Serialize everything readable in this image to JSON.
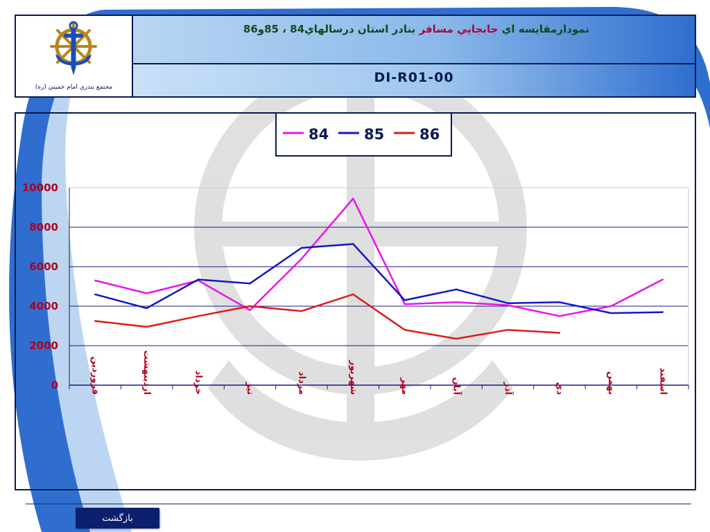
{
  "header": {
    "title_part1": "نمودارمقايسه اي ",
    "title_part2": "جابجايي مسافر",
    "title_part3": " بنادر استان درسالهاي84 ، 85و86",
    "code": "DI-R01-00",
    "logo_caption": "مجتمع بندري امام خميني (ره)"
  },
  "footer": {
    "back_label": "بازگشت"
  },
  "colors": {
    "s84": "#e815e8",
    "s85": "#1515c8",
    "s86": "#dd1a1a",
    "grid": "#1a1a8a",
    "axis_text": "#b00020"
  },
  "chart_data": {
    "type": "line",
    "title": "",
    "xlabel": "",
    "ylabel": "",
    "ylim": [
      0,
      10000
    ],
    "yticks": [
      {
        "value": 0,
        "label": "0"
      },
      {
        "value": 2000,
        "label": "2000"
      },
      {
        "value": 4000,
        "label": "4000"
      },
      {
        "value": 6000,
        "label": "6000"
      },
      {
        "value": 8000,
        "label": "8000"
      },
      {
        "value": 10000,
        "label": "10000"
      }
    ],
    "grid": true,
    "legend_position": "top-center",
    "categories": [
      "فروردين",
      "ارديبهشت",
      "خرداد",
      "تير",
      "مرداد",
      "شهريور",
      "مهر",
      "آبان",
      "آذر",
      "دي",
      "بهمن",
      "اسفند"
    ],
    "series": [
      {
        "name": "84",
        "color": "#e815e8",
        "values": [
          5300,
          4650,
          5300,
          3800,
          6400,
          9450,
          4100,
          4200,
          4050,
          3500,
          4000,
          5350
        ]
      },
      {
        "name": "85",
        "color": "#1515c8",
        "values": [
          4600,
          3900,
          5350,
          5150,
          6950,
          7150,
          4300,
          4850,
          4150,
          4200,
          3650,
          3700
        ]
      },
      {
        "name": "86",
        "color": "#dd1a1a",
        "values": [
          3250,
          2950,
          3500,
          4000,
          3750,
          4600,
          2800,
          2350,
          2800,
          2650,
          null,
          null
        ]
      }
    ]
  }
}
